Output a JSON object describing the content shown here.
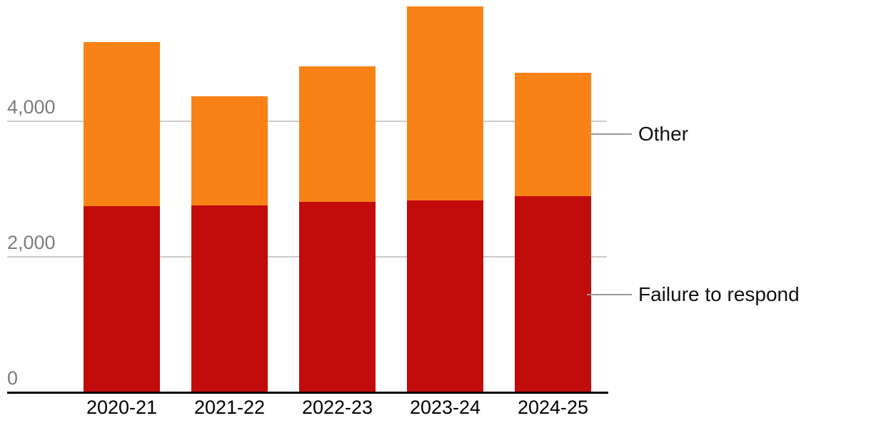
{
  "chart_data": {
    "type": "bar",
    "stacked": true,
    "title": "",
    "xlabel": "",
    "ylabel": "",
    "categories": [
      "2020-21",
      "2021-22",
      "2022-23",
      "2023-24",
      "2024-25"
    ],
    "series": [
      {
        "name": "Failure to respond",
        "color": "#c20b0b",
        "values": [
          2750,
          2760,
          2810,
          2830,
          2890
        ]
      },
      {
        "name": "Other",
        "color": "#f98216",
        "values": [
          2420,
          1610,
          2000,
          2860,
          1830
        ]
      }
    ],
    "ylim": [
      0,
      5800
    ],
    "yticks": [
      0,
      2000,
      4000
    ],
    "ytick_labels": [
      "0",
      "2,000",
      "4,000"
    ],
    "grid": "horizontal",
    "legend_position": "right-direct-labels"
  },
  "colors": {
    "axis_line": "#000000",
    "gridline": "#cccccc",
    "y_tick_text": "#7d7d7d",
    "x_tick_text": "#000000",
    "legend_callout": "#999999",
    "legend_text": "#111111"
  }
}
